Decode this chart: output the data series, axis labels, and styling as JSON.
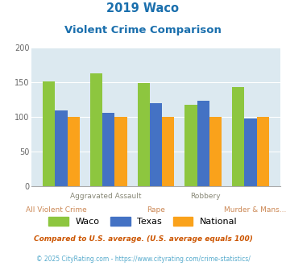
{
  "title_line1": "2019 Waco",
  "title_line2": "Violent Crime Comparison",
  "categories": [
    "All Violent Crime",
    "Aggravated Assault",
    "Rape",
    "Robbery",
    "Murder & Mans..."
  ],
  "waco": [
    152,
    163,
    149,
    118,
    143
  ],
  "texas": [
    110,
    106,
    120,
    123,
    98
  ],
  "national": [
    100,
    100,
    100,
    100,
    100
  ],
  "waco_color": "#8dc63f",
  "texas_color": "#4472c4",
  "national_color": "#faa21b",
  "title_color": "#1a6fad",
  "xlabel_color_top": "#888877",
  "xlabel_color_bot": "#cc8855",
  "ylabel_color": "#666666",
  "plot_bg": "#dce9f0",
  "ylim": [
    0,
    200
  ],
  "yticks": [
    0,
    50,
    100,
    150,
    200
  ],
  "footnote1": "Compared to U.S. average. (U.S. average equals 100)",
  "footnote2": "© 2025 CityRating.com - https://www.cityrating.com/crime-statistics/",
  "footnote1_color": "#cc5500",
  "footnote2_color": "#55aacc",
  "legend_labels": [
    "Waco",
    "Texas",
    "National"
  ]
}
